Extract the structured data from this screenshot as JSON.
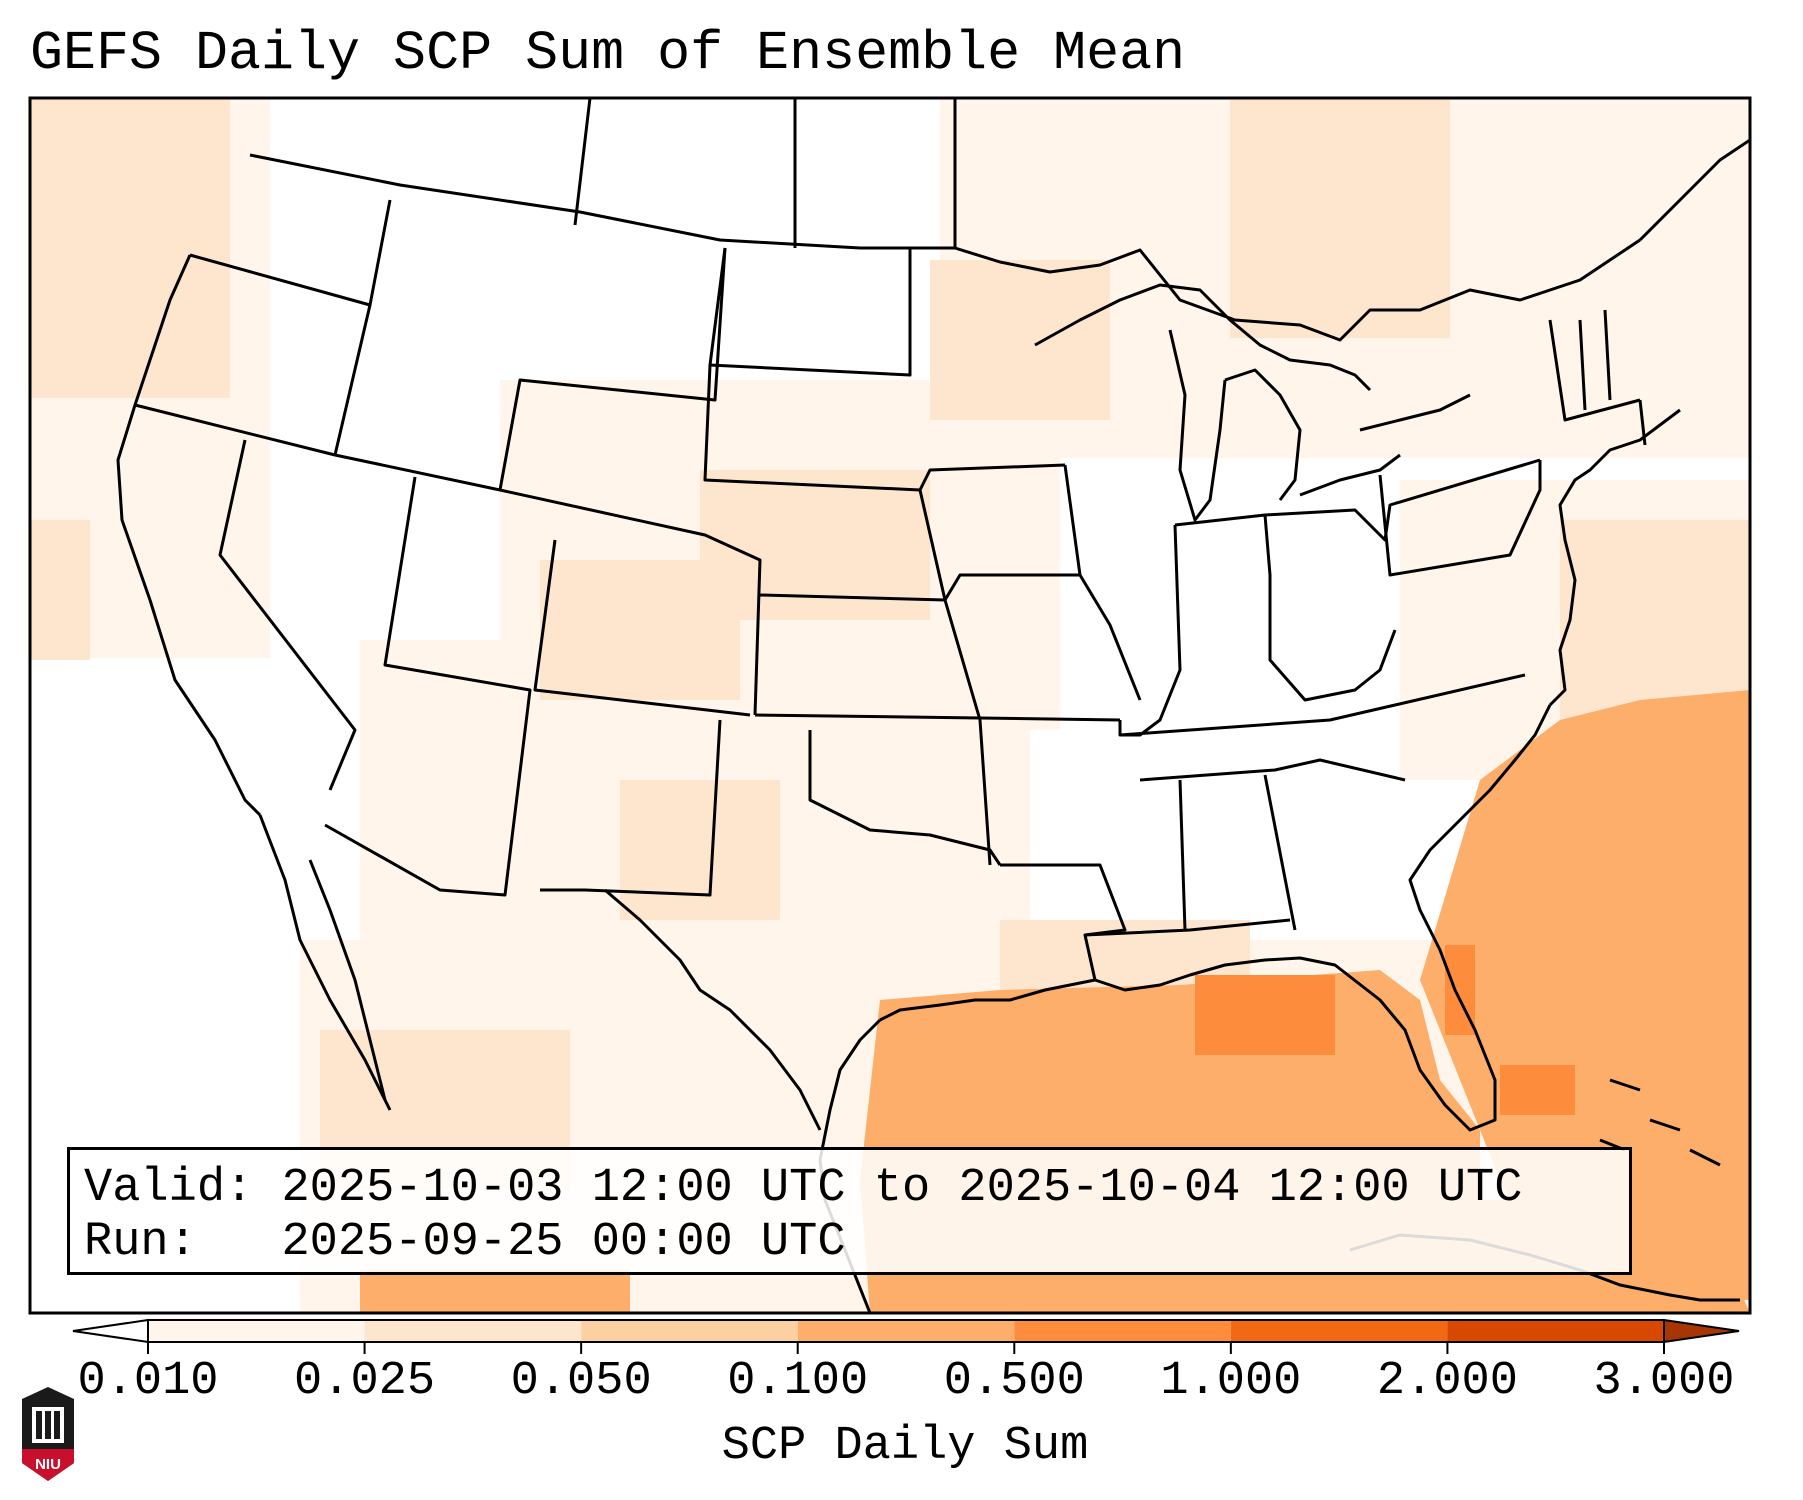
{
  "title": "GEFS Daily SCP Sum of Ensemble Mean",
  "info": {
    "valid_label": "Valid:",
    "valid_value": "2025-10-03 12:00 UTC to 2025-10-04 12:00 UTC",
    "run_label": "Run:",
    "run_value": "2025-09-25 00:00 UTC"
  },
  "colorbar": {
    "label": "SCP Daily Sum",
    "ticks": [
      "0.010",
      "0.025",
      "0.050",
      "0.100",
      "0.500",
      "1.000",
      "2.000",
      "3.000"
    ],
    "colors": [
      "#fff5eb",
      "#fee6ce",
      "#fdd0a2",
      "#fdae6b",
      "#fd8d3c",
      "#f16913",
      "#d94801",
      "#a63603"
    ],
    "extend": "both"
  },
  "logo": {
    "text": "NIU",
    "color": "#c8102e"
  },
  "map": {
    "region": "Contiguous United States",
    "boundaries": [
      "state-borders",
      "coastlines",
      "country-borders"
    ]
  }
}
